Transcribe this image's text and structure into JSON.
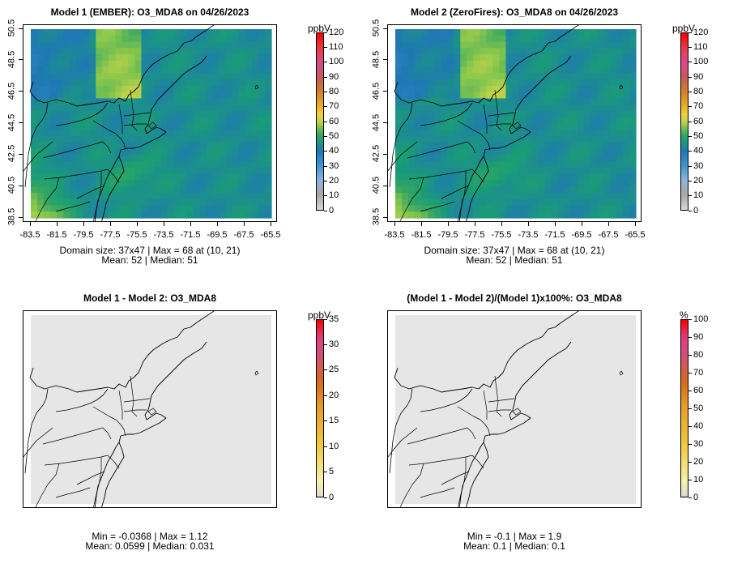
{
  "panels": [
    {
      "title": "Model 1 (EMBER): O3_MDA8 on 04/26/2023",
      "unit": "ppbV",
      "legend_ticks": [
        "0",
        "10",
        "20",
        "30",
        "40",
        "50",
        "60",
        "70",
        "80",
        "90",
        "100",
        "110",
        "120"
      ],
      "legend_max": 120,
      "x_ticks": [
        "-83.5",
        "-81.5",
        "-79.5",
        "-77.5",
        "-75.5",
        "-73.5",
        "-71.5",
        "-69.5",
        "-67.5",
        "-65.5"
      ],
      "y_ticks": [
        "38.5",
        "40.5",
        "42.5",
        "44.5",
        "46.5",
        "48.5",
        "50.5"
      ],
      "caption1": "Domain size: 37x47 | Max = 68 at (10, 21)",
      "caption2": "Mean: 52 |  Median: 51",
      "kind": "ozone"
    },
    {
      "title": "Model 2 (ZeroFires): O3_MDA8 on 04/26/2023",
      "unit": "ppbV",
      "legend_ticks": [
        "0",
        "10",
        "20",
        "30",
        "40",
        "50",
        "60",
        "70",
        "80",
        "90",
        "100",
        "110",
        "120"
      ],
      "legend_max": 120,
      "x_ticks": [
        "-83.5",
        "-81.5",
        "-79.5",
        "-77.5",
        "-75.5",
        "-73.5",
        "-71.5",
        "-69.5",
        "-67.5",
        "-65.5"
      ],
      "y_ticks": [
        "38.5",
        "40.5",
        "42.5",
        "44.5",
        "46.5",
        "48.5",
        "50.5"
      ],
      "caption1": "Domain size: 37x47 | Max = 68 at (10, 21)",
      "caption2": "Mean: 52 |  Median: 51",
      "kind": "ozone"
    },
    {
      "title": "Model 1 - Model 2: O3_MDA8",
      "unit": "ppbV",
      "legend_ticks": [
        "0",
        "5",
        "10",
        "15",
        "20",
        "25",
        "30",
        "35"
      ],
      "legend_max": 35,
      "x_ticks": [],
      "y_ticks": [],
      "caption1": "Min = -0.0368 | Max = 1.12",
      "caption2": "Mean: 0.0599 |  Median: 0.031",
      "kind": "diff"
    },
    {
      "title": "(Model 1 - Model 2)/(Model 1)x100%: O3_MDA8",
      "unit": "%",
      "legend_ticks": [
        "0",
        "10",
        "20",
        "30",
        "40",
        "50",
        "60",
        "70",
        "80",
        "90",
        "100"
      ],
      "legend_max": 100,
      "x_ticks": [],
      "y_ticks": [],
      "caption1": "Min = -0.1 | Max = 1.9",
      "caption2": "Mean: 0.1 |  Median: 0.1",
      "kind": "diff"
    }
  ],
  "colors": {
    "ozone_low": "#1f78b4",
    "ozone_mid": "#1a9e73",
    "ozone_green": "#7cc35a",
    "ozone_high": "#f2cf3a",
    "ozone_peak": "#e8b428",
    "diff_bg": "#e6e6e6"
  }
}
